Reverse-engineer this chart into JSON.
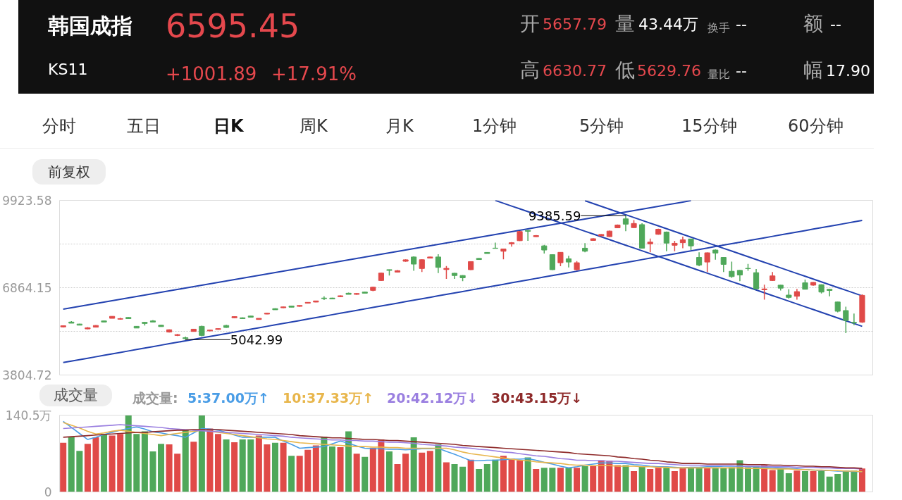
{
  "chart_data": [
    {
      "type": "candlestick",
      "title": "韩国成指",
      "subtitle": "KS11",
      "annotations": [
        "6595.45",
        "+1001.89",
        "+17.91%",
        "开",
        "5657.79",
        "量",
        "43.44万",
        "换手",
        "--",
        "额",
        "--",
        "高",
        "6630.77",
        "低",
        "5629.76",
        "量比",
        "--",
        "幅",
        "17.90",
        "分时",
        "五日",
        "日K",
        "周K",
        "月K",
        "1分钟",
        "5分钟",
        "15分钟",
        "60分钟",
        "前复权",
        "9385.59",
        "5042.99"
      ],
      "categories": [
        null,
        null,
        null,
        null,
        null,
        null,
        null,
        null,
        null,
        null,
        null,
        null,
        null,
        null,
        null,
        null,
        null,
        null,
        null,
        null,
        null,
        null,
        null,
        null,
        null,
        null,
        null,
        null,
        null,
        null,
        null,
        null,
        null,
        null,
        null,
        null,
        null,
        null,
        null,
        null,
        null,
        null,
        null,
        null,
        null,
        null,
        null,
        null,
        null,
        null,
        null,
        null,
        null,
        null,
        null,
        null,
        null,
        null,
        null,
        null,
        null,
        null,
        null,
        null,
        null,
        null,
        null,
        null,
        null,
        null,
        null,
        null,
        null,
        null,
        null,
        null,
        null,
        null,
        null,
        null,
        null,
        null,
        null,
        null,
        null,
        null,
        null,
        null,
        null,
        null,
        null,
        null,
        null,
        null,
        null,
        null,
        null,
        null,
        null
      ],
      "ohlc": [
        [
          5490,
          5540,
          5470,
          5530
        ],
        [
          5660,
          5690,
          5620,
          5620
        ],
        [
          5590,
          5600,
          5550,
          5550
        ],
        [
          5420,
          5480,
          5410,
          5460
        ],
        [
          5480,
          5550,
          5470,
          5540
        ],
        [
          5700,
          5710,
          5660,
          5660
        ],
        [
          5790,
          5860,
          5790,
          5860
        ],
        [
          5760,
          5810,
          5750,
          5780
        ],
        [
          5820,
          5830,
          5780,
          5780
        ],
        [
          5510,
          5520,
          5450,
          5450
        ],
        [
          5650,
          5660,
          5540,
          5610
        ],
        [
          5700,
          5730,
          5660,
          5660
        ],
        [
          5550,
          5560,
          5500,
          5500
        ],
        [
          5310,
          5400,
          5290,
          5390
        ],
        [
          5190,
          5240,
          5170,
          5220
        ],
        [
          5110,
          5150,
          5042.99,
          5080
        ],
        [
          5330,
          5420,
          5320,
          5410
        ],
        [
          5510,
          5530,
          5160,
          5190
        ],
        [
          5350,
          5390,
          5340,
          5380
        ],
        [
          5400,
          5440,
          5390,
          5430
        ],
        [
          5540,
          5560,
          5460,
          5470
        ],
        [
          5810,
          5860,
          5800,
          5850
        ],
        [
          5810,
          5820,
          5780,
          5780
        ],
        [
          5870,
          5880,
          5830,
          5830
        ],
        [
          5750,
          5790,
          5740,
          5790
        ],
        [
          5940,
          5980,
          5930,
          5970
        ],
        [
          6130,
          6140,
          6090,
          6090
        ],
        [
          6160,
          6200,
          6150,
          6190
        ],
        [
          6220,
          6230,
          6180,
          6180
        ],
        [
          6210,
          6240,
          6200,
          6240
        ],
        [
          6320,
          6350,
          6310,
          6350
        ],
        [
          6360,
          6400,
          6350,
          6400
        ],
        [
          6500,
          6560,
          6430,
          6480
        ],
        [
          6500,
          6510,
          6470,
          6470
        ],
        [
          6550,
          6590,
          6530,
          6580
        ],
        [
          6670,
          6690,
          6630,
          6630
        ],
        [
          6630,
          6670,
          6620,
          6660
        ],
        [
          6710,
          6720,
          6670,
          6670
        ],
        [
          6770,
          6900,
          6740,
          6880
        ],
        [
          7115,
          7390,
          7100,
          7374
        ],
        [
          7495,
          7500,
          7290,
          7470
        ],
        [
          7410,
          7480,
          7400,
          7460
        ],
        [
          7790,
          7860,
          7770,
          7840
        ],
        [
          7940,
          7960,
          7455,
          7690
        ],
        [
          7535,
          7860,
          7414,
          7843
        ],
        [
          7900,
          7950,
          7890,
          7940
        ],
        [
          7940,
          8037,
          7374,
          7576
        ],
        [
          7500,
          7620,
          7170,
          7540
        ],
        [
          7370,
          7380,
          7170,
          7290
        ],
        [
          7290,
          7300,
          7090,
          7210
        ],
        [
          7495,
          7790,
          7480,
          7778
        ],
        [
          7890,
          7900,
          7850,
          7850
        ],
        [
          8100,
          8110,
          8060,
          8060
        ],
        [
          8250,
          8442,
          8240,
          8240
        ],
        [
          8140,
          8230,
          7860,
          8220
        ],
        [
          8400,
          8460,
          8300,
          8440
        ],
        [
          8510,
          8850,
          8500,
          8830
        ],
        [
          8870,
          8880,
          8507,
          8840
        ],
        [
          8650,
          8710,
          8640,
          8690
        ],
        [
          8329,
          8360,
          8062,
          8183
        ],
        [
          8021,
          8030,
          7480,
          7495
        ],
        [
          7738,
          8110,
          7616,
          8102
        ],
        [
          7876,
          7981,
          7576,
          7762
        ],
        [
          7495,
          7795,
          7471,
          7738
        ],
        [
          8248,
          8426,
          8102,
          8142
        ],
        [
          8520,
          8600,
          8510,
          8580
        ],
        [
          8680,
          8740,
          8670,
          8730
        ],
        [
          8652,
          8860,
          8640,
          8847
        ],
        [
          8960,
          9080,
          8950,
          9060
        ],
        [
          9275,
          9385.59,
          8847,
          9089
        ],
        [
          8968,
          9235,
          8960,
          9114
        ],
        [
          9073,
          9120,
          8248,
          8248
        ],
        [
          8400,
          8588,
          8102,
          8460
        ],
        [
          8733,
          8930,
          8720,
          8910
        ],
        [
          8814,
          8830,
          8142,
          8426
        ],
        [
          8350,
          8507,
          8142,
          8420
        ],
        [
          8440,
          8652,
          8248,
          8540
        ],
        [
          8571,
          8580,
          8183,
          8329
        ],
        [
          7924,
          8102,
          7616,
          7657
        ],
        [
          7762,
          8100,
          7414,
          8086
        ],
        [
          8183,
          8200,
          7843,
          8078
        ],
        [
          7924,
          7940,
          7414,
          7681
        ],
        [
          7438,
          7778,
          7212,
          7252
        ],
        [
          7471,
          7480,
          7090,
          7309
        ],
        [
          7540,
          7697,
          7455,
          7530
        ],
        [
          7390,
          7519,
          6823,
          6823
        ],
        [
          6790,
          6969,
          6443,
          6820
        ],
        [
          7115,
          7414,
          7100,
          7277
        ],
        [
          6953,
          6960,
          6767,
          6848
        ],
        [
          6605,
          6807,
          6483,
          6524
        ],
        [
          6564,
          6823,
          6443,
          6726
        ],
        [
          7034,
          7147,
          6807,
          6807
        ],
        [
          6953,
          7060,
          6929,
          7050
        ],
        [
          6969,
          6980,
          6661,
          6710
        ],
        [
          6807,
          6815,
          6564,
          6767
        ],
        [
          6362,
          6370,
          5998,
          6038
        ],
        [
          6063,
          6200,
          5270,
          5715
        ],
        [
          5650,
          5957,
          5553,
          5634
        ],
        [
          5657.79,
          6630.77,
          5629.76,
          6595.45
        ]
      ],
      "colors": [
        "#e04a48",
        "#4fa85a",
        "#4fa85a",
        "#e04a48",
        "#e04a48",
        "#4fa85a",
        "#e04a48",
        "#e04a48",
        "#4fa85a",
        "#4fa85a",
        "#4fa85a",
        "#4fa85a",
        "#4fa85a",
        "#e04a48",
        "#e04a48",
        "#4fa85a",
        "#e04a48",
        "#4fa85a",
        "#e04a48",
        "#e04a48",
        "#4fa85a",
        "#e04a48",
        "#4fa85a",
        "#4fa85a",
        "#e04a48",
        "#e04a48",
        "#4fa85a",
        "#e04a48",
        "#4fa85a",
        "#e04a48",
        "#e04a48",
        "#e04a48",
        "#4fa85a",
        "#4fa85a",
        "#e04a48",
        "#4fa85a",
        "#e04a48",
        "#4fa85a",
        "#e04a48",
        "#e04a48",
        "#4fa85a",
        "#e04a48",
        "#e04a48",
        "#4fa85a",
        "#e04a48",
        "#e04a48",
        "#4fa85a",
        "#e04a48",
        "#4fa85a",
        "#4fa85a",
        "#e04a48",
        "#4fa85a",
        "#4fa85a",
        "#4fa85a",
        "#e04a48",
        "#e04a48",
        "#e04a48",
        "#4fa85a",
        "#e04a48",
        "#4fa85a",
        "#4fa85a",
        "#e04a48",
        "#4fa85a",
        "#e04a48",
        "#4fa85a",
        "#e04a48",
        "#e04a48",
        "#e04a48",
        "#e04a48",
        "#4fa85a",
        "#e04a48",
        "#4fa85a",
        "#e04a48",
        "#e04a48",
        "#4fa85a",
        "#e04a48",
        "#e04a48",
        "#4fa85a",
        "#4fa85a",
        "#e04a48",
        "#4fa85a",
        "#4fa85a",
        "#4fa85a",
        "#4fa85a",
        "#4fa85a",
        "#4fa85a",
        "#e04a48",
        "#e04a48",
        "#4fa85a",
        "#4fa85a",
        "#e04a48",
        "#4fa85a",
        "#e04a48",
        "#4fa85a",
        "#4fa85a",
        "#4fa85a",
        "#4fa85a",
        "#4fa85a",
        "#e04a48"
      ],
      "ylim": [
        3804.72,
        9923.58
      ],
      "yticks": [
        9923.58,
        {
          "value": 8393.87,
          "label": null
        },
        6864.15,
        {
          "value": 5334.44,
          "label": null
        },
        3804.72
      ],
      "grid": "y",
      "tick_labels": "y",
      "series": [
        {
          "type": "line",
          "color": "#2342b0",
          "values": [
            6110,
            6159,
            6209,
            6258,
            6308,
            6357,
            6406,
            6456,
            6505,
            6555,
            6604,
            6653,
            6703,
            6752,
            6802,
            6851,
            6900,
            6950,
            6999,
            7049,
            7098,
            7147,
            7197,
            7246,
            7296,
            7345,
            7394,
            7444,
            7493,
            7543,
            7592,
            7641,
            7691,
            7740,
            7790,
            7839,
            7888,
            7938,
            7987,
            8037,
            8086,
            8135,
            8185,
            8234,
            8284,
            8333,
            8382,
            8432,
            8481,
            8531,
            8580,
            8629,
            8679,
            8728,
            8778,
            8827,
            8876,
            8926,
            8975,
            9025,
            9074,
            9123,
            9173,
            9222,
            9272,
            9321,
            9370,
            9420,
            9469,
            9519,
            9568,
            9617,
            9667,
            9716,
            9766,
            9815,
            9864,
            9914,
            null,
            null,
            null,
            null,
            null,
            null,
            null,
            null,
            null,
            null,
            null,
            null,
            null,
            null,
            null,
            null,
            null,
            null,
            null,
            null,
            null
          ]
        },
        {
          "type": "line",
          "color": "#2342b0",
          "values": [
            4240,
            4291,
            4342,
            4392,
            4443,
            4494,
            4545,
            4596,
            4647,
            4697,
            4748,
            4799,
            4850,
            4900,
            4951,
            5002,
            5053,
            5104,
            5155,
            5205,
            5256,
            5307,
            5358,
            5408,
            5459,
            5510,
            5561,
            5612,
            5663,
            5713,
            5765,
            5816,
            5867,
            5917,
            5968,
            6019,
            6070,
            6121,
            6172,
            6222,
            6273,
            6324,
            6375,
            6425,
            6476,
            6527,
            6578,
            6629,
            6680,
            6730,
            6781,
            6832,
            6883,
            6933,
            6984,
            7035,
            7086,
            7137,
            7188,
            7238,
            7289,
            7340,
            7391,
            7441,
            7492,
            7543,
            7594,
            7645,
            7696,
            7746,
            7797,
            7848,
            7899,
            7949,
            8000,
            8051,
            8102,
            8153,
            8204,
            8254,
            8306,
            8357,
            8408,
            8458,
            8509,
            8560,
            8611,
            8662,
            8713,
            8763,
            8814,
            8865,
            8916,
            8966,
            9017,
            9068,
            9119,
            9170,
            9220
          ]
        },
        {
          "type": "line",
          "color": "#2342b0",
          "values": [
            null,
            null,
            null,
            null,
            null,
            null,
            null,
            null,
            null,
            null,
            null,
            null,
            null,
            null,
            null,
            null,
            null,
            null,
            null,
            null,
            null,
            null,
            null,
            null,
            null,
            null,
            null,
            null,
            null,
            null,
            null,
            null,
            null,
            null,
            null,
            null,
            null,
            null,
            null,
            null,
            null,
            null,
            null,
            null,
            null,
            null,
            null,
            null,
            null,
            null,
            null,
            null,
            null,
            9920,
            9822,
            9724,
            9626,
            9528,
            9430,
            9332,
            9234,
            9136,
            9038,
            8940,
            8842,
            8744,
            8646,
            8548,
            8450,
            8352,
            8254,
            8156,
            8058,
            7960,
            7862,
            7764,
            7666,
            7568,
            7470,
            7372,
            7274,
            7176,
            7078,
            6980,
            6882,
            6784,
            6686,
            6588,
            6490,
            6392,
            6294,
            6196,
            6098,
            6000,
            5902,
            5804,
            5706,
            5608,
            5510
          ]
        },
        {
          "type": "line",
          "color": "#2342b0",
          "values": [
            null,
            null,
            null,
            null,
            null,
            null,
            null,
            null,
            null,
            null,
            null,
            null,
            null,
            null,
            null,
            null,
            null,
            null,
            null,
            null,
            null,
            null,
            null,
            null,
            null,
            null,
            null,
            null,
            null,
            null,
            null,
            null,
            null,
            null,
            null,
            null,
            null,
            null,
            null,
            null,
            null,
            null,
            null,
            null,
            null,
            null,
            null,
            null,
            null,
            null,
            null,
            null,
            null,
            null,
            null,
            null,
            null,
            null,
            null,
            null,
            null,
            null,
            null,
            null,
            9910,
            9812,
            9714,
            9616,
            9518,
            9420,
            9322,
            9224,
            9126,
            9028,
            8930,
            8832,
            8734,
            8636,
            8538,
            8440,
            8342,
            8244,
            8146,
            8048,
            7950,
            7852,
            7754,
            7656,
            7558,
            7460,
            7362,
            7264,
            7166,
            7068,
            6970,
            6872,
            6774,
            6676,
            6578
          ]
        }
      ]
    },
    {
      "type": "bar",
      "title": "成交量",
      "legend_title": "成交量:",
      "legend": "top",
      "categories": [
        null,
        null,
        null,
        null,
        null,
        null,
        null,
        null,
        null,
        null,
        null,
        null,
        null,
        null,
        null,
        null,
        null,
        null,
        null,
        null,
        null,
        null,
        null,
        null,
        null,
        null,
        null,
        null,
        null,
        null,
        null,
        null,
        null,
        null,
        null,
        null,
        null,
        null,
        null,
        null,
        null,
        null,
        null,
        null,
        null,
        null,
        null,
        null,
        null,
        null,
        null,
        null,
        null,
        null,
        null,
        null,
        null,
        null,
        null,
        null,
        null,
        null,
        null,
        null,
        null,
        null,
        null,
        null,
        null,
        null,
        null,
        null,
        null,
        null,
        null,
        null,
        null,
        null,
        null,
        null,
        null,
        null,
        null,
        null,
        null,
        null,
        null,
        null,
        null,
        null,
        null,
        null,
        null,
        null,
        null,
        null,
        null,
        null,
        null
      ],
      "values": [
        90,
        101,
        75,
        88,
        100,
        106,
        103,
        106,
        140,
        106,
        111,
        74,
        88,
        87,
        70,
        113,
        92,
        140,
        116,
        106,
        96,
        91,
        96,
        96,
        103,
        87,
        90,
        90,
        66,
        66,
        77,
        85,
        101,
        83,
        82,
        111,
        70,
        64,
        81,
        96,
        74,
        51,
        70,
        100,
        72,
        75,
        87,
        54,
        51,
        46,
        59,
        42,
        51,
        59,
        66,
        61,
        58,
        63,
        42,
        44,
        44,
        44,
        44,
        44,
        47,
        47,
        58,
        57,
        49,
        49,
        38,
        47,
        42,
        44,
        44,
        38,
        44,
        44,
        44,
        44,
        44,
        44,
        45,
        58,
        45,
        47,
        49,
        40,
        42,
        34,
        39,
        38,
        38,
        38,
        28,
        33,
        39,
        39,
        43
      ],
      "colors": [
        "#e04a48",
        "#4fa85a",
        "#4fa85a",
        "#e04a48",
        "#e04a48",
        "#4fa85a",
        "#e04a48",
        "#e04a48",
        "#4fa85a",
        "#4fa85a",
        "#4fa85a",
        "#4fa85a",
        "#4fa85a",
        "#e04a48",
        "#e04a48",
        "#4fa85a",
        "#e04a48",
        "#4fa85a",
        "#e04a48",
        "#e04a48",
        "#4fa85a",
        "#e04a48",
        "#4fa85a",
        "#4fa85a",
        "#e04a48",
        "#e04a48",
        "#4fa85a",
        "#e04a48",
        "#4fa85a",
        "#e04a48",
        "#e04a48",
        "#e04a48",
        "#4fa85a",
        "#4fa85a",
        "#e04a48",
        "#4fa85a",
        "#e04a48",
        "#4fa85a",
        "#e04a48",
        "#e04a48",
        "#4fa85a",
        "#e04a48",
        "#e04a48",
        "#4fa85a",
        "#e04a48",
        "#e04a48",
        "#4fa85a",
        "#e04a48",
        "#4fa85a",
        "#4fa85a",
        "#e04a48",
        "#4fa85a",
        "#4fa85a",
        "#4fa85a",
        "#e04a48",
        "#e04a48",
        "#e04a48",
        "#4fa85a",
        "#e04a48",
        "#4fa85a",
        "#4fa85a",
        "#e04a48",
        "#4fa85a",
        "#e04a48",
        "#4fa85a",
        "#e04a48",
        "#e04a48",
        "#e04a48",
        "#e04a48",
        "#4fa85a",
        "#e04a48",
        "#4fa85a",
        "#e04a48",
        "#e04a48",
        "#4fa85a",
        "#e04a48",
        "#e04a48",
        "#4fa85a",
        "#4fa85a",
        "#e04a48",
        "#4fa85a",
        "#4fa85a",
        "#4fa85a",
        "#4fa85a",
        "#4fa85a",
        "#4fa85a",
        "#e04a48",
        "#e04a48",
        "#4fa85a",
        "#4fa85a",
        "#e04a48",
        "#4fa85a",
        "#e04a48",
        "#4fa85a",
        "#4fa85a",
        "#4fa85a",
        "#4fa85a",
        "#4fa85a",
        "#e04a48"
      ],
      "ylim": [
        0,
        140.5
      ],
      "yticks": [
        0,
        {
          "value": 140.5,
          "label": "140.5万"
        }
      ],
      "tick_labels": "y",
      "series": [
        {
          "name": "5:37.00万↑",
          "color": "#4a9de6",
          "type": "line",
          "values": [
            129,
            118,
            107,
            96,
            100,
            105,
            109,
            113,
            116,
            119,
            115,
            110,
            108,
            105,
            103,
            100,
            108,
            116,
            115,
            113,
            109,
            104,
            100,
            100,
            100,
            100,
            100,
            93,
            87,
            80,
            81,
            82,
            83,
            88,
            93,
            89,
            84,
            80,
            79,
            79,
            78,
            78,
            77,
            78,
            79,
            79,
            80,
            74,
            69,
            63,
            57,
            57,
            58,
            58,
            59,
            60,
            60,
            61,
            58,
            54,
            51,
            47,
            44,
            46,
            49,
            51,
            53,
            53,
            52,
            52,
            50,
            49,
            47,
            46,
            46,
            45,
            44,
            45,
            45,
            46,
            46,
            47,
            47,
            47,
            46,
            46,
            45,
            45,
            44,
            43,
            42,
            41,
            40,
            39,
            39,
            38,
            38,
            37,
            37
          ]
        },
        {
          "name": "10:37.33万↑",
          "color": "#e8b64c",
          "type": "line",
          "values": [
            127,
            122,
            117,
            111,
            106,
            108,
            111,
            113,
            111,
            109,
            107,
            105,
            103,
            105,
            107,
            109,
            111,
            113,
            111,
            109,
            107,
            105,
            103,
            101,
            99,
            97,
            96,
            94,
            92,
            90,
            89,
            88,
            87,
            86,
            85,
            84,
            83,
            83,
            82,
            82,
            81,
            81,
            80,
            80,
            80,
            80,
            80,
            80,
            77,
            73,
            70,
            68,
            66,
            64,
            62,
            60,
            58,
            57,
            55,
            54,
            53,
            52,
            50,
            49,
            49,
            48,
            48,
            48,
            47,
            47,
            47,
            46,
            46,
            45,
            45,
            44,
            44,
            44,
            44,
            44,
            44,
            44,
            44,
            44,
            43,
            43,
            43,
            42,
            42,
            42,
            41,
            41,
            40,
            40,
            39,
            39,
            38,
            38,
            37
          ]
        },
        {
          "name": "20:42.12万↓",
          "color": "#9a7fe0",
          "type": "line",
          "values": [
            116,
            117,
            118,
            119,
            120,
            121,
            122,
            123,
            122,
            121,
            120,
            119,
            118,
            116,
            115,
            114,
            113,
            112,
            111,
            110,
            109,
            108,
            107,
            106,
            105,
            104,
            103,
            102,
            100,
            99,
            98,
            97,
            96,
            95,
            95,
            94,
            94,
            93,
            93,
            92,
            91,
            91,
            90,
            89,
            87,
            86,
            85,
            84,
            82,
            81,
            80,
            78,
            77,
            75,
            73,
            72,
            70,
            68,
            66,
            65,
            63,
            61,
            60,
            58,
            58,
            57,
            57,
            56,
            56,
            55,
            54,
            53,
            52,
            52,
            51,
            50,
            49,
            49,
            49,
            48,
            48,
            48,
            48,
            47,
            47,
            47,
            47,
            46,
            46,
            46,
            45,
            45,
            45,
            44,
            44,
            43,
            43,
            43,
            42
          ]
        },
        {
          "name": "30:43.15万↓",
          "color": "#8e2a2a",
          "type": "line",
          "values": [
            100,
            101,
            102,
            103,
            104,
            105,
            106,
            107,
            108,
            109,
            109,
            110,
            111,
            112,
            113,
            113,
            114,
            114,
            114,
            114,
            113,
            112,
            111,
            110,
            109,
            108,
            107,
            106,
            105,
            103,
            102,
            101,
            100,
            99,
            99,
            98,
            97,
            96,
            96,
            95,
            94,
            94,
            93,
            92,
            91,
            90,
            89,
            88,
            87,
            85,
            84,
            83,
            82,
            81,
            80,
            79,
            78,
            77,
            76,
            75,
            74,
            73,
            72,
            70,
            69,
            68,
            67,
            66,
            64,
            63,
            61,
            60,
            58,
            57,
            55,
            54,
            52,
            52,
            52,
            51,
            51,
            51,
            51,
            51,
            50,
            50,
            50,
            49,
            49,
            48,
            48,
            47,
            47,
            46,
            46,
            45,
            44,
            44,
            43
          ]
        }
      ]
    }
  ]
}
